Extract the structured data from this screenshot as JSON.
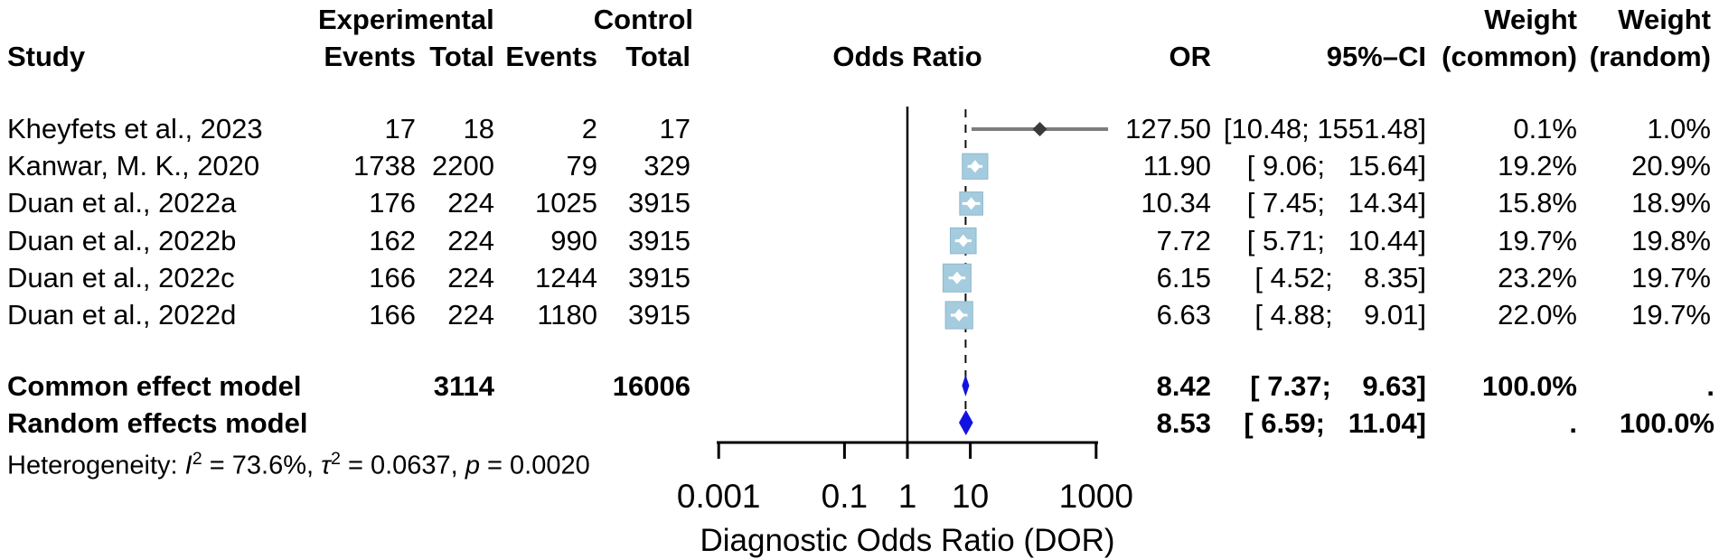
{
  "chart_data": {
    "type": "scatter",
    "variant": "forest-plot-meta-analysis",
    "title": "",
    "headers": {
      "group_experimental": "Experimental",
      "group_control": "Control",
      "study": "Study",
      "events": "Events",
      "total": "Total",
      "odds_ratio": "Odds Ratio",
      "or": "OR",
      "ci": "95%–CI",
      "weight": "Weight",
      "weight_common_sub": "(common)",
      "weight_random_sub": "(random)"
    },
    "x_axis": {
      "scale": "log",
      "label": "Diagnostic Odds Ratio (DOR)",
      "tick_values": [
        0.001,
        0.1,
        1,
        10,
        1000
      ],
      "tick_labels": [
        "0.001",
        "0.1",
        "1",
        "10",
        "1000"
      ],
      "range": [
        0.001,
        1000
      ],
      "reference_line": 1
    },
    "studies": [
      {
        "study": "Kheyfets et al., 2023",
        "exp_events": "17",
        "exp_total": "18",
        "ctrl_events": "2",
        "ctrl_total": "17",
        "or": "127.50",
        "or_value": 127.5,
        "ci_low": 10.48,
        "ci_high": 1551.48,
        "ci": "[10.48; 1551.48]",
        "weight_common": "0.1%",
        "weight_common_value": 0.1,
        "weight_random": "1.0%",
        "weight_random_value": 1.0
      },
      {
        "study": "Kanwar, M. K., 2020",
        "exp_events": "1738",
        "exp_total": "2200",
        "ctrl_events": "79",
        "ctrl_total": "329",
        "or": "11.90",
        "or_value": 11.9,
        "ci_low": 9.06,
        "ci_high": 15.64,
        "ci": "[ 9.06;   15.64]",
        "weight_common": "19.2%",
        "weight_common_value": 19.2,
        "weight_random": "20.9%",
        "weight_random_value": 20.9
      },
      {
        "study": "Duan et al., 2022a",
        "exp_events": "176",
        "exp_total": "224",
        "ctrl_events": "1025",
        "ctrl_total": "3915",
        "or": "10.34",
        "or_value": 10.34,
        "ci_low": 7.45,
        "ci_high": 14.34,
        "ci": "[ 7.45;   14.34]",
        "weight_common": "15.8%",
        "weight_common_value": 15.8,
        "weight_random": "18.9%",
        "weight_random_value": 18.9
      },
      {
        "study": "Duan et al., 2022b",
        "exp_events": "162",
        "exp_total": "224",
        "ctrl_events": "990",
        "ctrl_total": "3915",
        "or": "7.72",
        "or_value": 7.72,
        "ci_low": 5.71,
        "ci_high": 10.44,
        "ci": "[ 5.71;   10.44]",
        "weight_common": "19.7%",
        "weight_common_value": 19.7,
        "weight_random": "19.8%",
        "weight_random_value": 19.8
      },
      {
        "study": "Duan et al., 2022c",
        "exp_events": "166",
        "exp_total": "224",
        "ctrl_events": "1244",
        "ctrl_total": "3915",
        "or": "6.15",
        "or_value": 6.15,
        "ci_low": 4.52,
        "ci_high": 8.35,
        "ci": "[ 4.52;    8.35]",
        "weight_common": "23.2%",
        "weight_common_value": 23.2,
        "weight_random": "19.7%",
        "weight_random_value": 19.7
      },
      {
        "study": "Duan et al., 2022d",
        "exp_events": "166",
        "exp_total": "224",
        "ctrl_events": "1180",
        "ctrl_total": "3915",
        "or": "6.63",
        "or_value": 6.63,
        "ci_low": 4.88,
        "ci_high": 9.01,
        "ci": "[ 4.88;    9.01]",
        "weight_common": "22.0%",
        "weight_common_value": 22.0,
        "weight_random": "19.7%",
        "weight_random_value": 19.7
      }
    ],
    "summary": {
      "common": {
        "label": "Common effect model",
        "exp_total": "3114",
        "ctrl_total": "16006",
        "or": "8.42",
        "or_value": 8.42,
        "ci_low": 7.37,
        "ci_high": 9.63,
        "ci": "[ 7.37;    9.63]",
        "weight_common": "100.0%",
        "weight_random": "."
      },
      "random": {
        "label": "Random effects model",
        "exp_total": "",
        "ctrl_total": "",
        "or": "8.53",
        "or_value": 8.53,
        "ci_low": 6.59,
        "ci_high": 11.04,
        "ci": "[ 6.59;   11.04]",
        "weight_common": ".",
        "weight_random": "100.0%"
      }
    },
    "heterogeneity": {
      "prefix": "Heterogeneity: ",
      "i_sym": "I",
      "i_sup": "2",
      "i_val": " = 73.6%, ",
      "tau_sym": "τ",
      "tau_sup": "2",
      "tau_val": " = 0.0637, ",
      "p_sym": "p",
      "p_val": " = 0.0020"
    },
    "colors": {
      "square_fill": "#A4CBDE",
      "square_edge": "#8FB9CF",
      "summary_diamond": "#1212E0",
      "ci_line": "#7D7D7D",
      "point_estimate": "#3A3A3A",
      "axis": "#000000"
    }
  }
}
